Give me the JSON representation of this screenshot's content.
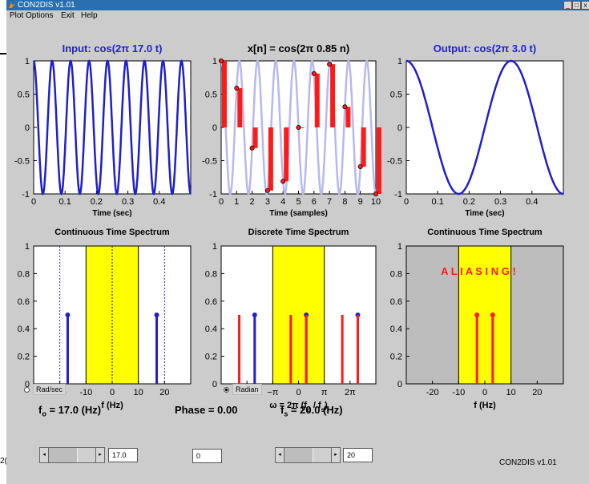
{
  "window": {
    "title": "CON2DIS v1.01",
    "background_heading": "( ",
    "background_heading_right": ")",
    "background_fragment": "2("
  },
  "menu": [
    "Plot Options",
    "Exit",
    "Help"
  ],
  "plots": {
    "input": {
      "title": "Input: cos(2π 17.0 t)",
      "xlabel": "Time (sec)",
      "xticks": [
        "0",
        "0.1",
        "0.2",
        "0.3",
        "0.4"
      ],
      "yticks": [
        "1",
        "0.5",
        "0",
        "-0.5",
        "-1"
      ]
    },
    "discrete": {
      "title": "x[n] = cos(2π 0.85 n)",
      "xlabel": "Time (samples)",
      "xticks": [
        "0",
        "1",
        "2",
        "3",
        "4",
        "5",
        "6",
        "7",
        "8",
        "9",
        "10"
      ],
      "yticks": [
        "1",
        "0.5",
        "0",
        "-0.5",
        "-1"
      ]
    },
    "output": {
      "title": "Output: cos(2π 3.0 t)",
      "xlabel": "Time (sec)",
      "xticks": [
        "0",
        "0.1",
        "0.2",
        "0.3",
        "0.4"
      ],
      "yticks": [
        "1",
        "0.5",
        "0",
        "-0.5",
        "-1"
      ]
    },
    "ct_spectrum_in": {
      "title": "Continuous Time Spectrum",
      "xlabel": "f (Hz)",
      "xticks": [
        "-20",
        "-10",
        "0",
        "10",
        "20"
      ],
      "yticks": [
        "1",
        "0.8",
        "0.6",
        "0.4",
        "0.2",
        "0"
      ]
    },
    "dt_spectrum": {
      "title": "Discrete Time Spectrum",
      "xlabel": "ω = 2π (f",
      "xlabel_sub1": "o",
      "xlabel_mid": " / f",
      "xlabel_sub2": "s",
      "xlabel_end": ")",
      "xticks": [
        "−2π",
        "−π",
        "0",
        "π",
        "2π"
      ],
      "yticks": [
        "1",
        "0.8",
        "0.6",
        "0.4",
        "0.2",
        "0"
      ]
    },
    "ct_spectrum_out": {
      "title": "Continuous Time Spectrum",
      "xlabel": "f (Hz)",
      "annotation": "A L I A S I N G !",
      "xticks": [
        "-20",
        "-10",
        "0",
        "10",
        "20"
      ],
      "yticks": [
        "1",
        "0.8",
        "0.6",
        "0.4",
        "0.2",
        "0"
      ]
    }
  },
  "chart_data": [
    {
      "type": "line",
      "title": "Input: cos(2π 17.0 t)",
      "xlabel": "Time (sec)",
      "frequency_hz": 17.0,
      "xlim": [
        0,
        0.5
      ],
      "ylim": [
        -1,
        1
      ]
    },
    {
      "type": "bar",
      "title": "x[n] = cos(2π 0.85 n)",
      "xlabel": "Time (samples)",
      "x": [
        0,
        1,
        2,
        3,
        4,
        5,
        6,
        7,
        8,
        9,
        10
      ],
      "values": [
        1.0,
        0.59,
        -0.31,
        -0.95,
        -0.81,
        0.0,
        0.81,
        0.95,
        0.31,
        -0.59,
        -1.0
      ],
      "ylim": [
        -1,
        1
      ]
    },
    {
      "type": "line",
      "title": "Output: cos(2π 3.0 t)",
      "xlabel": "Time (sec)",
      "frequency_hz": 3.0,
      "xlim": [
        0,
        0.5
      ],
      "ylim": [
        -1,
        1
      ]
    },
    {
      "type": "bar",
      "title": "Continuous Time Spectrum",
      "xlabel": "f (Hz)",
      "x": [
        -17,
        17
      ],
      "values": [
        0.5,
        0.5
      ],
      "xlim": [
        -30,
        30
      ],
      "ylim": [
        0,
        1
      ],
      "band": [
        -10,
        10
      ]
    },
    {
      "type": "bar",
      "title": "Discrete Time Spectrum",
      "series": [
        {
          "values_x_over_pi": [
            -1.7,
            0.3,
            2.3
          ],
          "values": [
            0.5,
            0.5,
            0.5
          ]
        },
        {
          "values_x_over_pi": [
            -2.3,
            -0.3,
            0.3,
            1.7,
            2.3
          ],
          "values": [
            0.5,
            0.5,
            0.5,
            0.5,
            0.5
          ]
        }
      ],
      "band_over_pi": [
        -1,
        1
      ],
      "ylim": [
        0,
        1
      ]
    },
    {
      "type": "bar",
      "title": "Continuous Time Spectrum",
      "xlabel": "f (Hz)",
      "x": [
        -3,
        3
      ],
      "values": [
        0.5,
        0.5
      ],
      "xlim": [
        -30,
        30
      ],
      "ylim": [
        0,
        1
      ],
      "band": [
        -10,
        10
      ]
    }
  ],
  "controls": {
    "fo_label": "f",
    "fo_sub": "o",
    "fo_rest": " = 17.0 (Hz)",
    "fo_value": "17.0",
    "phase_label": "Phase = 0.00",
    "phase_value": "0",
    "fs_label": "f",
    "fs_sub": "s",
    "fs_rest": " = 20.0 (Hz)",
    "fs_value": "20",
    "radio_rad": "Rad/sec",
    "radio_radian": "Radian",
    "version": "CON2DIS v1.01"
  },
  "colors": {
    "signal": "#1f1fd0",
    "samples": "#ff1a1a",
    "ghost": "#b8b8f0",
    "band": "#ffff00",
    "aliasing_bg": "#bdbdbd"
  }
}
